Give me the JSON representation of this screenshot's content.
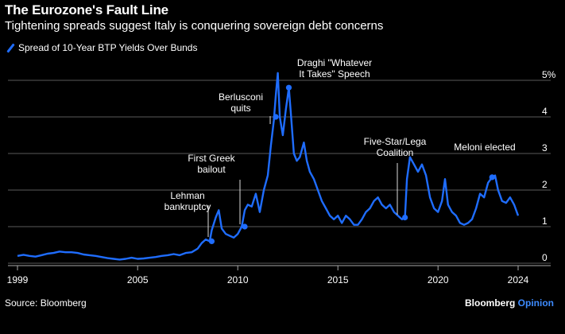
{
  "header": {
    "title": "The Eurozone's Fault Line",
    "subtitle": "Tightening spreads suggest Italy is conquering sovereign debt concerns"
  },
  "footer": {
    "source": "Source: Bloomberg",
    "brand_main": "Bloomberg",
    "brand_accent": "Opinion"
  },
  "colors": {
    "series": "#1f6dff",
    "background": "#000000",
    "grid": "#5a5a5a",
    "brand_accent": "#3d8bff"
  },
  "chart_data": {
    "type": "line",
    "title": "The Eurozone's Fault Line",
    "subtitle": "Tightening spreads suggest Italy is conquering sovereign debt concerns",
    "xlabel": "",
    "ylabel": "",
    "xlim": [
      1999,
      2024.6
    ],
    "ylim": [
      0,
      5
    ],
    "y_unit_suffix": "%",
    "y_axis_position": "right",
    "grid": "horizontal",
    "legend_placement": "top-left",
    "x_ticks": [
      1999,
      2005,
      2010,
      2015,
      2020,
      2024
    ],
    "y_ticks": [
      0,
      1,
      2,
      3,
      4,
      5
    ],
    "series": [
      {
        "name": "Spread of 10-Year BTP Yields Over Bunds",
        "x": [
          1999.0,
          1999.3,
          1999.6,
          1999.9,
          2000.2,
          2000.5,
          2000.8,
          2001.1,
          2001.4,
          2001.7,
          2002.0,
          2002.3,
          2002.6,
          2002.9,
          2003.2,
          2003.5,
          2003.8,
          2004.1,
          2004.4,
          2004.7,
          2005.0,
          2005.3,
          2005.6,
          2005.9,
          2006.2,
          2006.5,
          2006.8,
          2007.1,
          2007.4,
          2007.7,
          2008.0,
          2008.2,
          2008.4,
          2008.6,
          2008.7,
          2008.9,
          2009.05,
          2009.2,
          2009.4,
          2009.6,
          2009.8,
          2010.0,
          2010.2,
          2010.35,
          2010.5,
          2010.7,
          2010.9,
          2011.1,
          2011.3,
          2011.5,
          2011.65,
          2011.8,
          2011.9,
          2012.0,
          2012.1,
          2012.25,
          2012.4,
          2012.55,
          2012.65,
          2012.8,
          2012.95,
          2013.1,
          2013.3,
          2013.45,
          2013.6,
          2013.8,
          2014.0,
          2014.2,
          2014.4,
          2014.6,
          2014.8,
          2015.0,
          2015.2,
          2015.4,
          2015.6,
          2015.8,
          2016.0,
          2016.2,
          2016.4,
          2016.6,
          2016.8,
          2017.0,
          2017.2,
          2017.4,
          2017.6,
          2017.8,
          2018.0,
          2018.2,
          2018.35,
          2018.45,
          2018.6,
          2018.8,
          2019.0,
          2019.2,
          2019.4,
          2019.6,
          2019.8,
          2020.0,
          2020.2,
          2020.35,
          2020.5,
          2020.7,
          2020.9,
          2021.1,
          2021.3,
          2021.5,
          2021.7,
          2021.9,
          2022.1,
          2022.3,
          2022.5,
          2022.7,
          2022.85,
          2023.0,
          2023.2,
          2023.4,
          2023.6,
          2023.8,
          2024.0
        ],
        "values": [
          0.2,
          0.23,
          0.2,
          0.18,
          0.22,
          0.26,
          0.28,
          0.32,
          0.3,
          0.3,
          0.28,
          0.24,
          0.22,
          0.2,
          0.17,
          0.14,
          0.12,
          0.1,
          0.12,
          0.15,
          0.12,
          0.13,
          0.15,
          0.17,
          0.2,
          0.22,
          0.25,
          0.22,
          0.28,
          0.3,
          0.4,
          0.55,
          0.65,
          0.6,
          0.9,
          1.25,
          1.45,
          0.95,
          0.8,
          0.75,
          0.7,
          0.8,
          1.0,
          1.45,
          1.6,
          1.55,
          1.9,
          1.4,
          2.0,
          2.4,
          3.2,
          3.9,
          4.6,
          5.2,
          4.0,
          3.5,
          4.2,
          4.8,
          4.1,
          3.0,
          2.8,
          2.9,
          3.3,
          2.8,
          2.5,
          2.3,
          2.0,
          1.7,
          1.5,
          1.3,
          1.2,
          1.3,
          1.1,
          1.3,
          1.2,
          1.05,
          1.05,
          1.2,
          1.4,
          1.5,
          1.7,
          1.8,
          1.6,
          1.5,
          1.6,
          1.4,
          1.3,
          1.2,
          1.25,
          2.3,
          2.9,
          2.7,
          2.5,
          2.7,
          2.4,
          1.8,
          1.5,
          1.4,
          1.7,
          2.3,
          1.6,
          1.4,
          1.3,
          1.1,
          1.05,
          1.1,
          1.2,
          1.5,
          1.9,
          1.8,
          2.2,
          2.35,
          2.4,
          2.0,
          1.7,
          1.65,
          1.8,
          1.6,
          1.3
        ]
      }
    ],
    "annotations": [
      {
        "label": "Lehman\nbankruptcy",
        "x": 2008.7,
        "y": 0.6,
        "leader": true
      },
      {
        "label": "First Greek\nbailout",
        "x": 2010.35,
        "y": 1.0,
        "leader": true
      },
      {
        "label": "Berlusconi\nquits",
        "x": 2011.9,
        "y": 4.0,
        "leader": true
      },
      {
        "label": "Draghi \"Whatever\nIt Takes\" Speech",
        "x": 2012.55,
        "y": 4.8,
        "leader": false
      },
      {
        "label": "Five-Star/Lega\nCoalition",
        "x": 2018.35,
        "y": 1.25,
        "leader": true
      },
      {
        "label": "Meloni elected",
        "x": 2022.7,
        "y": 2.35,
        "leader": false
      }
    ]
  }
}
